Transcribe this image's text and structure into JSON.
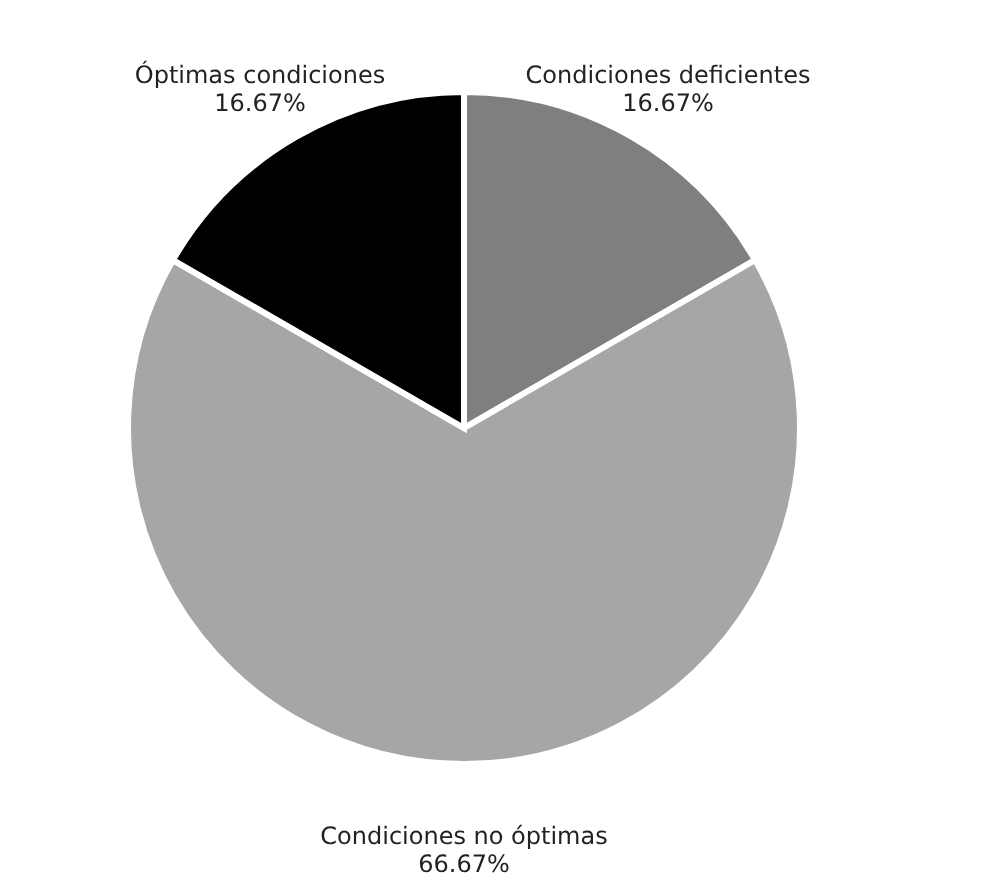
{
  "chart_data": {
    "type": "pie",
    "categories": [
      "Condiciones deficientes",
      "Condiciones no óptimas",
      "Óptimas condiciones"
    ],
    "values": [
      16.67,
      66.67,
      16.67
    ],
    "colors": [
      "#7f7f7f",
      "#a6a6a6",
      "#000000"
    ],
    "value_labels": [
      "16.67%",
      "66.67%",
      "16.67%"
    ]
  }
}
